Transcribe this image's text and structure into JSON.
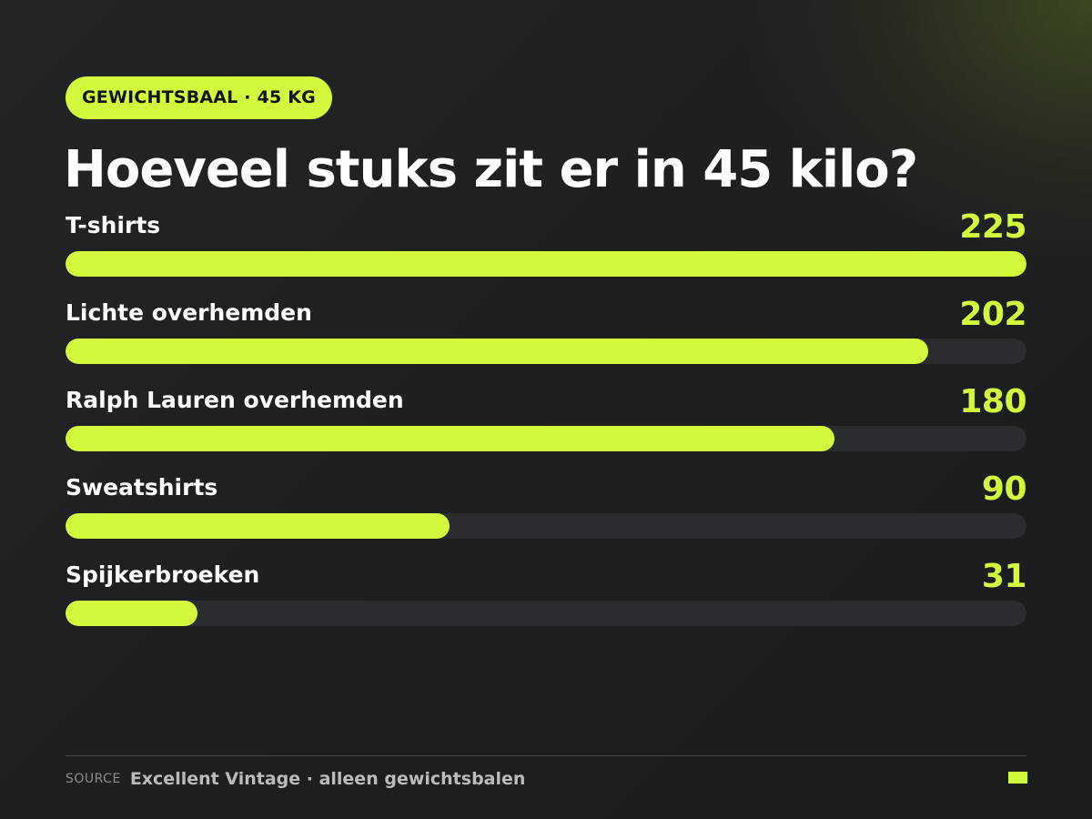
{
  "tag": "GEWICHTSBAAL · 45 KG",
  "title": "Hoeveel stuks zit er in 45 kilo?",
  "chart_data": {
    "type": "bar",
    "orientation": "horizontal",
    "categories": [
      "T-shirts",
      "Lichte overhemden",
      "Ralph Lauren overhemden",
      "Sweatshirts",
      "Spijkerbroeken"
    ],
    "values": [
      225,
      202,
      180,
      90,
      31
    ],
    "xlim": [
      0,
      225
    ],
    "grid": false,
    "legend": "none",
    "bar_color": "#d2fa3c",
    "track_color": "#2b2c2f"
  },
  "footer": {
    "source_label": "SOURCE",
    "source_text": "Excellent Vintage · alleen gewichtsbalen"
  },
  "colors": {
    "accent": "#d2fa3c",
    "background": "#1e1f21"
  }
}
